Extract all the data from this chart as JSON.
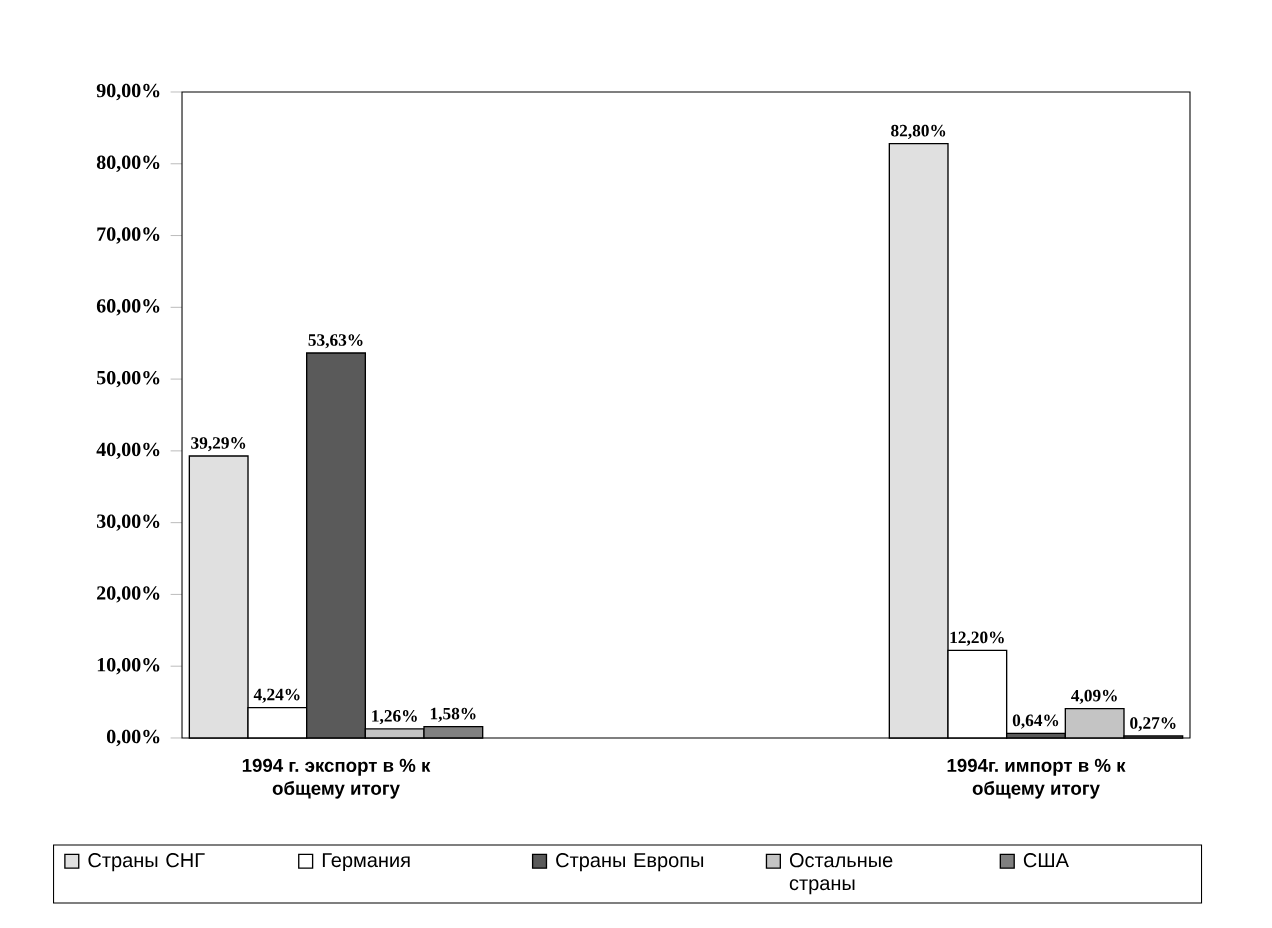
{
  "chart_data": {
    "type": "bar",
    "categories": [
      "1994 г. экспорт в % к общему итогу",
      "1994г. импорт в % к общему итогу"
    ],
    "series": [
      {
        "name": "Страны СНГ",
        "color": "#e0e0e0",
        "values": [
          39.29,
          82.8
        ],
        "value_labels": [
          "39,29%",
          "82,80%"
        ]
      },
      {
        "name": "Германия",
        "color": "#ffffff",
        "values": [
          4.24,
          12.2
        ],
        "value_labels": [
          "4,24%",
          "12,20%"
        ]
      },
      {
        "name": "Страны Европы",
        "color": "#5a5a5a",
        "values": [
          53.63,
          0.64
        ],
        "value_labels": [
          "53,63%",
          "0,64%"
        ]
      },
      {
        "name": "Остальные страны",
        "color": "#c4c4c4",
        "values": [
          1.26,
          4.09
        ],
        "value_labels": [
          "1,26%",
          "4,09%"
        ]
      },
      {
        "name": "США",
        "color": "#808080",
        "values": [
          1.58,
          0.27
        ],
        "value_labels": [
          "1,58%",
          "0,27%"
        ]
      }
    ],
    "ylim": [
      0,
      90
    ],
    "yticks": [
      {
        "value": 0,
        "label": "0,00%"
      },
      {
        "value": 10,
        "label": "10,00%"
      },
      {
        "value": 20,
        "label": "20,00%"
      },
      {
        "value": 30,
        "label": "30,00%"
      },
      {
        "value": 40,
        "label": "40,00%"
      },
      {
        "value": 50,
        "label": "50,00%"
      },
      {
        "value": 60,
        "label": "60,00%"
      },
      {
        "value": 70,
        "label": "70,00%"
      },
      {
        "value": 80,
        "label": "80,00%"
      },
      {
        "value": 90,
        "label": "90,00%"
      }
    ],
    "legend": "bottom"
  }
}
